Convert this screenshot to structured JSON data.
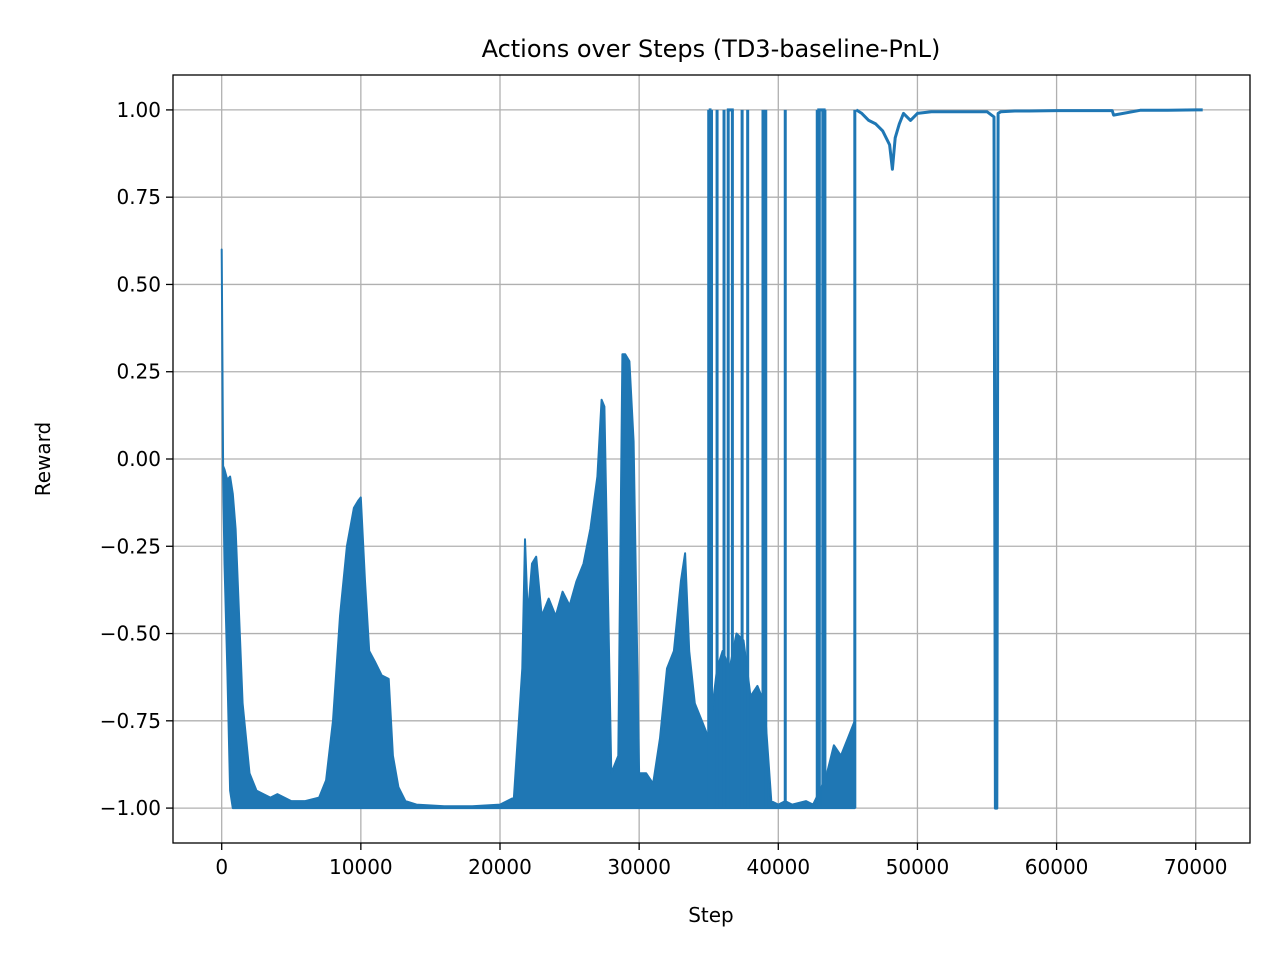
{
  "chart_data": {
    "type": "line",
    "title": "Actions over Steps (TD3-baseline-PnL)",
    "xlabel": "Step",
    "ylabel": "Reward",
    "xlim": [
      -3500,
      73900
    ],
    "ylim": [
      -1.1,
      1.1
    ],
    "grid": true,
    "legend": "none",
    "xticks": [
      0,
      10000,
      20000,
      30000,
      40000,
      50000,
      60000,
      70000
    ],
    "xtick_labels": [
      "0",
      "10000",
      "20000",
      "30000",
      "40000",
      "50000",
      "60000",
      "70000"
    ],
    "yticks": [
      -1.0,
      -0.75,
      -0.5,
      -0.25,
      0.0,
      0.25,
      0.5,
      0.75,
      1.0
    ],
    "ytick_labels": [
      "−1.00",
      "−0.75",
      "−0.50",
      "−0.25",
      "0.00",
      "0.25",
      "0.50",
      "0.75",
      "1.00"
    ],
    "series": [
      {
        "color": "#1f77b4",
        "envelope": {
          "x": [
            0,
            100,
            200,
            400,
            600,
            800,
            1000,
            1200,
            1500,
            2000,
            2500,
            3000,
            3500,
            4000,
            5000,
            6000,
            7000,
            7500,
            8000,
            8500,
            9000,
            9500,
            9800,
            10000,
            10300,
            10600,
            11000,
            11500,
            12000,
            12300,
            12700,
            13200,
            14000,
            16000,
            18000,
            20000,
            21000,
            21600,
            21800,
            22000,
            22300,
            22600,
            23000,
            23500,
            24000,
            24500,
            25000,
            25500,
            26000,
            26500,
            27000,
            27300,
            27500,
            28000,
            28500,
            28800,
            29000,
            29300,
            29600,
            30000,
            30500,
            31000,
            31500,
            32000,
            32500,
            33000,
            33300,
            33600,
            34000,
            34500,
            35000,
            35300,
            35600,
            36000,
            36500,
            37000,
            37500,
            38000,
            38500,
            39000,
            39500,
            40000,
            40500,
            41000,
            41500,
            42000,
            42500,
            43000,
            43500,
            44000,
            44500,
            45000,
            45500
          ],
          "upper": [
            0.6,
            -0.02,
            -0.03,
            -0.06,
            -0.05,
            -0.1,
            -0.2,
            -0.4,
            -0.7,
            -0.9,
            -0.95,
            -0.96,
            -0.97,
            -0.96,
            -0.98,
            -0.98,
            -0.97,
            -0.92,
            -0.75,
            -0.45,
            -0.25,
            -0.14,
            -0.12,
            -0.11,
            -0.35,
            -0.55,
            -0.58,
            -0.62,
            -0.63,
            -0.85,
            -0.94,
            -0.98,
            -0.99,
            -0.995,
            -0.995,
            -0.99,
            -0.97,
            -0.6,
            -0.23,
            -0.45,
            -0.3,
            -0.28,
            -0.45,
            -0.4,
            -0.45,
            -0.38,
            -0.42,
            -0.35,
            -0.3,
            -0.2,
            -0.05,
            0.17,
            0.15,
            -0.9,
            -0.85,
            0.3,
            0.3,
            0.28,
            0.05,
            -0.9,
            -0.9,
            -0.93,
            -0.8,
            -0.6,
            -0.55,
            -0.35,
            -0.27,
            -0.55,
            -0.7,
            -0.75,
            -0.8,
            -0.7,
            -0.6,
            -0.55,
            -0.6,
            -0.5,
            -0.52,
            -0.68,
            -0.65,
            -0.7,
            -0.98,
            -0.99,
            -0.98,
            -0.99,
            -0.985,
            -0.98,
            -0.99,
            -0.95,
            -0.9,
            -0.82,
            -0.85,
            -0.8,
            -0.75
          ],
          "lower": [
            0.6,
            -0.05,
            -0.3,
            -0.6,
            -0.95,
            -1.0,
            -1.0,
            -1.0,
            -1.0,
            -1.0,
            -1.0,
            -1.0,
            -1.0,
            -1.0,
            -1.0,
            -1.0,
            -1.0,
            -1.0,
            -1.0,
            -1.0,
            -1.0,
            -1.0,
            -1.0,
            -1.0,
            -1.0,
            -1.0,
            -1.0,
            -1.0,
            -1.0,
            -1.0,
            -1.0,
            -1.0,
            -1.0,
            -1.0,
            -1.0,
            -1.0,
            -1.0,
            -1.0,
            -1.0,
            -1.0,
            -1.0,
            -1.0,
            -1.0,
            -1.0,
            -1.0,
            -1.0,
            -1.0,
            -1.0,
            -1.0,
            -1.0,
            -1.0,
            -1.0,
            -1.0,
            -1.0,
            -1.0,
            -1.0,
            -1.0,
            -1.0,
            -1.0,
            -1.0,
            -1.0,
            -1.0,
            -1.0,
            -1.0,
            -1.0,
            -1.0,
            -1.0,
            -1.0,
            -1.0,
            -1.0,
            -1.0,
            -1.0,
            -1.0,
            -1.0,
            -1.0,
            -1.0,
            -1.0,
            -1.0,
            -1.0,
            -1.0,
            -1.0,
            -1.0,
            -1.0,
            -1.0,
            -1.0,
            -1.0,
            -1.0,
            -1.0,
            -1.0,
            -1.0,
            -1.0,
            -1.0,
            -1.0
          ]
        },
        "spikes_to_one": [
          35000,
          35200,
          35600,
          36100,
          36400,
          36700,
          37400,
          37800,
          38900,
          39100,
          40500,
          42800,
          42950,
          43200,
          43350
        ],
        "dense_end": 45500,
        "tail": {
          "x": [
            45600,
            46000,
            46500,
            47000,
            47500,
            48000,
            48200,
            48400,
            48700,
            49000,
            49500,
            50000,
            51000,
            52000,
            53000,
            54000,
            55000,
            55500,
            55600,
            55700,
            55800,
            56000,
            57000,
            58000,
            60000,
            62000,
            64000,
            64100,
            66000,
            68000,
            70000,
            70500
          ],
          "y": [
            1.0,
            0.99,
            0.97,
            0.96,
            0.94,
            0.9,
            0.83,
            0.92,
            0.96,
            0.99,
            0.97,
            0.99,
            0.995,
            0.995,
            0.995,
            0.995,
            0.995,
            0.98,
            -1.0,
            -1.0,
            0.99,
            0.995,
            0.997,
            0.997,
            0.998,
            0.998,
            0.998,
            0.985,
            0.999,
            0.999,
            1.0,
            1.0
          ]
        }
      }
    ]
  }
}
